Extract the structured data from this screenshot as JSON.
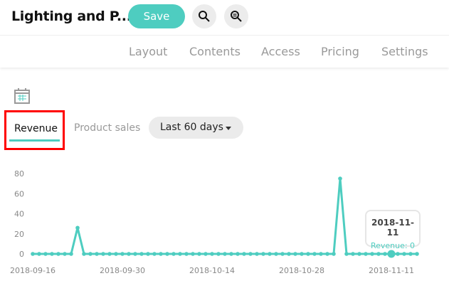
{
  "header": {
    "title": "Lighting and P...",
    "save_label": "Save",
    "icons": [
      "search-icon",
      "zoom-search-icon"
    ]
  },
  "nav": [
    "Layout",
    "Contents",
    "Access",
    "Pricing",
    "Settings"
  ],
  "tabs": [
    {
      "label": "Revenue",
      "active": true
    },
    {
      "label": "Product sales",
      "active": false
    }
  ],
  "range_select": {
    "value": "Last 60 days"
  },
  "tooltip": {
    "date": "2018-11-11",
    "text": "Revenue: 0"
  },
  "colors": {
    "accent": "#4ecdc0",
    "highlight": "#ff0000"
  },
  "chart_data": {
    "type": "line",
    "x_ticks": [
      "2018-09-16",
      "2018-09-30",
      "2018-10-14",
      "2018-10-28",
      "2018-11-11"
    ],
    "y_ticks": [
      0,
      20,
      40,
      60,
      80
    ],
    "ylim": [
      0,
      80
    ],
    "x": [
      "2018-09-16",
      "2018-09-17",
      "2018-09-18",
      "2018-09-19",
      "2018-09-20",
      "2018-09-21",
      "2018-09-22",
      "2018-09-23",
      "2018-09-24",
      "2018-09-25",
      "2018-09-26",
      "2018-09-27",
      "2018-09-28",
      "2018-09-29",
      "2018-09-30",
      "2018-10-01",
      "2018-10-02",
      "2018-10-03",
      "2018-10-04",
      "2018-10-05",
      "2018-10-06",
      "2018-10-07",
      "2018-10-08",
      "2018-10-09",
      "2018-10-10",
      "2018-10-11",
      "2018-10-12",
      "2018-10-13",
      "2018-10-14",
      "2018-10-15",
      "2018-10-16",
      "2018-10-17",
      "2018-10-18",
      "2018-10-19",
      "2018-10-20",
      "2018-10-21",
      "2018-10-22",
      "2018-10-23",
      "2018-10-24",
      "2018-10-25",
      "2018-10-26",
      "2018-10-27",
      "2018-10-28",
      "2018-10-29",
      "2018-10-30",
      "2018-10-31",
      "2018-11-01",
      "2018-11-02",
      "2018-11-03",
      "2018-11-04",
      "2018-11-05",
      "2018-11-06",
      "2018-11-07",
      "2018-11-08",
      "2018-11-09",
      "2018-11-10",
      "2018-11-11",
      "2018-11-12",
      "2018-11-13",
      "2018-11-14",
      "2018-11-15"
    ],
    "series": [
      {
        "values": [
          0,
          0,
          0,
          0,
          0,
          0,
          0,
          26,
          0,
          0,
          0,
          0,
          0,
          0,
          0,
          0,
          0,
          0,
          0,
          0,
          0,
          0,
          0,
          0,
          0,
          0,
          0,
          0,
          0,
          0,
          0,
          0,
          0,
          0,
          0,
          0,
          0,
          0,
          0,
          0,
          0,
          0,
          0,
          0,
          0,
          0,
          0,
          0,
          75,
          0,
          0,
          0,
          0,
          0,
          0,
          0,
          0,
          0,
          0,
          0,
          0
        ]
      }
    ],
    "highlighted": "2018-11-11",
    "grid": false
  }
}
